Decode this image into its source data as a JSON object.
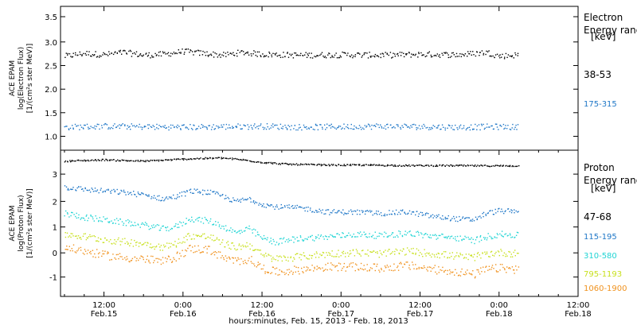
{
  "chart_data": {
    "type": "scatter",
    "xlabel": "hours:minutes, Feb. 15, 2013 - Feb. 18, 2013",
    "x_unit": "hours since Feb 15 00:00",
    "xlim": [
      5.4,
      84
    ],
    "x_ticks": [
      {
        "x": 12,
        "time": "12:00",
        "date": "Feb.15"
      },
      {
        "x": 24,
        "time": "0:00",
        "date": "Feb.16"
      },
      {
        "x": 36,
        "time": "12:00",
        "date": "Feb.16"
      },
      {
        "x": 48,
        "time": "0:00",
        "date": "Feb.17"
      },
      {
        "x": 60,
        "time": "12:00",
        "date": "Feb.17"
      },
      {
        "x": 72,
        "time": "0:00",
        "date": "Feb.18"
      },
      {
        "x": 84,
        "time": "12:00",
        "date": "Feb.18"
      }
    ],
    "panels": [
      {
        "ylabel_lines": [
          "ACE EPAM",
          "log(Electron Flux)",
          "[1/(cm²s ster MeV)]"
        ],
        "ylim": [
          0.75,
          3.75
        ],
        "yticks": [
          "1.0",
          "1.5",
          "2.0",
          "2.5",
          "3.0",
          "3.5"
        ],
        "legend_title": [
          "Electron",
          "Energy range"
        ],
        "legend_unit": "[keV]",
        "series": [
          {
            "name": "38-53",
            "color": "#000000",
            "points": [
              [
                6,
                2.72
              ],
              [
                9,
                2.78
              ],
              [
                12,
                2.75
              ],
              [
                15,
                2.8
              ],
              [
                18,
                2.74
              ],
              [
                21,
                2.76
              ],
              [
                24,
                2.82
              ],
              [
                27,
                2.78
              ],
              [
                30,
                2.74
              ],
              [
                33,
                2.8
              ],
              [
                36,
                2.76
              ],
              [
                42,
                2.74
              ],
              [
                48,
                2.75
              ],
              [
                54,
                2.74
              ],
              [
                60,
                2.76
              ],
              [
                66,
                2.75
              ],
              [
                70,
                2.8
              ],
              [
                72,
                2.72
              ],
              [
                75,
                2.75
              ]
            ]
          },
          {
            "name": "175-315",
            "color": "#1f77c7",
            "points": [
              [
                6,
                1.24
              ],
              [
                12,
                1.26
              ],
              [
                18,
                1.25
              ],
              [
                24,
                1.24
              ],
              [
                30,
                1.25
              ],
              [
                36,
                1.26
              ],
              [
                42,
                1.24
              ],
              [
                48,
                1.25
              ],
              [
                54,
                1.26
              ],
              [
                60,
                1.25
              ],
              [
                66,
                1.24
              ],
              [
                72,
                1.25
              ],
              [
                75,
                1.24
              ]
            ]
          }
        ]
      },
      {
        "ylabel_lines": [
          "ACE EPAM",
          "log(Proton Flux)",
          "[1/(cm²s ster MeV)]"
        ],
        "ylim": [
          -1.7,
          3.9
        ],
        "yticks": [
          "-1",
          "0",
          "1",
          "2",
          "3"
        ],
        "legend_title": [
          "Proton",
          "Energy range"
        ],
        "legend_unit": "[keV]",
        "series": [
          {
            "name": "47-68",
            "color": "#000000",
            "points": [
              [
                6,
                3.5
              ],
              [
                12,
                3.55
              ],
              [
                18,
                3.5
              ],
              [
                22,
                3.55
              ],
              [
                26,
                3.6
              ],
              [
                30,
                3.62
              ],
              [
                33,
                3.55
              ],
              [
                36,
                3.45
              ],
              [
                40,
                3.38
              ],
              [
                46,
                3.35
              ],
              [
                52,
                3.35
              ],
              [
                58,
                3.33
              ],
              [
                64,
                3.33
              ],
              [
                70,
                3.32
              ],
              [
                75,
                3.32
              ]
            ]
          },
          {
            "name": "115-195",
            "color": "#1f77c7",
            "points": [
              [
                6,
                2.5
              ],
              [
                9,
                2.42
              ],
              [
                12,
                2.35
              ],
              [
                15,
                2.3
              ],
              [
                18,
                2.2
              ],
              [
                21,
                2.05
              ],
              [
                23,
                2.15
              ],
              [
                25,
                2.35
              ],
              [
                28,
                2.3
              ],
              [
                30,
                2.15
              ],
              [
                32,
                1.95
              ],
              [
                34,
                2.05
              ],
              [
                36,
                1.85
              ],
              [
                38,
                1.75
              ],
              [
                42,
                1.7
              ],
              [
                46,
                1.55
              ],
              [
                50,
                1.55
              ],
              [
                54,
                1.5
              ],
              [
                58,
                1.55
              ],
              [
                62,
                1.38
              ],
              [
                66,
                1.28
              ],
              [
                68,
                1.25
              ],
              [
                70,
                1.5
              ],
              [
                72,
                1.6
              ],
              [
                75,
                1.55
              ]
            ]
          },
          {
            "name": "310-580",
            "color": "#20d4d4",
            "points": [
              [
                6,
                1.5
              ],
              [
                9,
                1.35
              ],
              [
                12,
                1.25
              ],
              [
                15,
                1.15
              ],
              [
                18,
                1.05
              ],
              [
                21,
                0.9
              ],
              [
                23,
                1.0
              ],
              [
                25,
                1.3
              ],
              [
                28,
                1.2
              ],
              [
                30,
                1.0
              ],
              [
                32,
                0.75
              ],
              [
                34,
                0.9
              ],
              [
                36,
                0.55
              ],
              [
                38,
                0.4
              ],
              [
                42,
                0.55
              ],
              [
                46,
                0.6
              ],
              [
                50,
                0.7
              ],
              [
                54,
                0.65
              ],
              [
                58,
                0.75
              ],
              [
                62,
                0.62
              ],
              [
                66,
                0.55
              ],
              [
                68,
                0.45
              ],
              [
                70,
                0.6
              ],
              [
                72,
                0.7
              ],
              [
                75,
                0.65
              ]
            ]
          },
          {
            "name": "795-1193",
            "color": "#c8e01e",
            "points": [
              [
                6,
                0.7
              ],
              [
                9,
                0.6
              ],
              [
                12,
                0.5
              ],
              [
                15,
                0.4
              ],
              [
                18,
                0.35
              ],
              [
                21,
                0.2
              ],
              [
                23,
                0.35
              ],
              [
                25,
                0.65
              ],
              [
                28,
                0.6
              ],
              [
                30,
                0.35
              ],
              [
                32,
                0.2
              ],
              [
                34,
                0.3
              ],
              [
                36,
                -0.1
              ],
              [
                38,
                -0.25
              ],
              [
                42,
                -0.15
              ],
              [
                46,
                -0.05
              ],
              [
                50,
                0.0
              ],
              [
                54,
                -0.05
              ],
              [
                58,
                0.05
              ],
              [
                62,
                -0.05
              ],
              [
                66,
                -0.15
              ],
              [
                68,
                -0.2
              ],
              [
                70,
                -0.05
              ],
              [
                72,
                0.0
              ],
              [
                75,
                -0.05
              ]
            ]
          },
          {
            "name": "1060-1900",
            "color": "#f0921e",
            "points": [
              [
                6,
                0.2
              ],
              [
                9,
                0.05
              ],
              [
                12,
                -0.1
              ],
              [
                15,
                -0.2
              ],
              [
                18,
                -0.25
              ],
              [
                21,
                -0.35
              ],
              [
                23,
                -0.15
              ],
              [
                25,
                0.15
              ],
              [
                28,
                0.1
              ],
              [
                30,
                -0.2
              ],
              [
                32,
                -0.35
              ],
              [
                34,
                -0.25
              ],
              [
                36,
                -0.6
              ],
              [
                38,
                -0.75
              ],
              [
                42,
                -0.65
              ],
              [
                46,
                -0.55
              ],
              [
                50,
                -0.55
              ],
              [
                54,
                -0.6
              ],
              [
                58,
                -0.5
              ],
              [
                62,
                -0.65
              ],
              [
                66,
                -0.75
              ],
              [
                68,
                -0.85
              ],
              [
                70,
                -0.65
              ],
              [
                72,
                -0.6
              ],
              [
                75,
                -0.65
              ]
            ]
          }
        ]
      }
    ]
  }
}
